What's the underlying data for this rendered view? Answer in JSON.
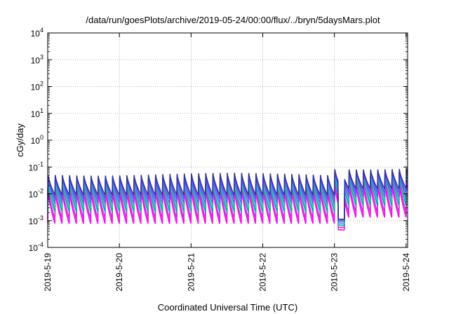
{
  "chart_data": {
    "type": "line",
    "title": "/data/run/goesPlots/archive/2019-05-24/00:00/flux/../bryn/5daysMars.plot",
    "xlabel": "Coordinated Universal Time (UTC)",
    "ylabel": "cGy/day",
    "yscale": "log",
    "ylim": [
      0.0001,
      10000
    ],
    "y_ticks": [
      {
        "base": "10",
        "exp": "-4"
      },
      {
        "base": "10",
        "exp": "-3"
      },
      {
        "base": "10",
        "exp": "-2"
      },
      {
        "base": "10",
        "exp": "-1"
      },
      {
        "base": "10",
        "exp": "0"
      },
      {
        "base": "10",
        "exp": "1"
      },
      {
        "base": "10",
        "exp": "2"
      },
      {
        "base": "10",
        "exp": "3"
      },
      {
        "base": "10",
        "exp": "4"
      }
    ],
    "x_range": [
      "2019-05-19",
      "2019-05-24 00:30"
    ],
    "x_ticks": [
      "2019-5-19",
      "2019-5-20",
      "2019-5-21",
      "2019-5-22",
      "2019-5-23",
      "2019-5-24"
    ],
    "grid": true,
    "cycles_per_day": 10,
    "series": [
      {
        "color": "#ff00ff",
        "peak": 0.014,
        "trough": 0.0008
      },
      {
        "color": "#cc33cc",
        "peak": 0.02,
        "trough": 0.0012
      },
      {
        "color": "#00aaaa",
        "peak": 0.028,
        "trough": 0.0022
      },
      {
        "color": "#33bbbb",
        "peak": 0.033,
        "trough": 0.003
      },
      {
        "color": "#6666dd",
        "peak": 0.04,
        "trough": 0.0045
      },
      {
        "color": "#5555ff",
        "peak": 0.046,
        "trough": 0.0065
      },
      {
        "color": "#333399",
        "peak": 0.052,
        "trough": 0.009
      }
    ],
    "features": {
      "elevated_from": "2019-05-22 22:00",
      "elevated_peak_factor": 1.7,
      "dropout_from": "2019-05-23 01:12",
      "dropout_to": "2019-05-23 03:24",
      "dropout_level": 0.00045
    }
  }
}
